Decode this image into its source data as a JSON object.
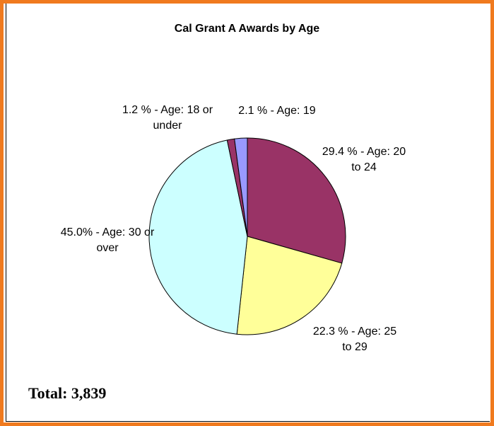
{
  "chart_data": {
    "type": "pie",
    "title": "Cal Grant A Awards by Age",
    "values": [
      29.4,
      22.3,
      45.0,
      1.2,
      2.1
    ],
    "value_labels": [
      "29.4 % - Age: 20 to 24",
      "22.3 % - Age: 25 to 29",
      "45.0% - Age: 30 or over",
      "1.2 % - Age: 18 or under",
      "2.1 % - Age: 19"
    ],
    "colors": [
      "#993366",
      "#ffff99",
      "#ccffff",
      "#993366",
      "#9999ff"
    ],
    "total": "Total: 3,839"
  }
}
